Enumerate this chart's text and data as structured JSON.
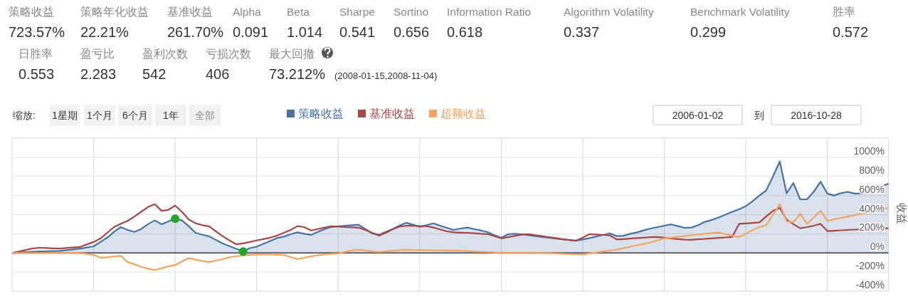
{
  "chart_data": [
    {
      "type": "other",
      "annotations": [
        "策略收益",
        "723.57%",
        "策略年化收益",
        "22.21%",
        "基准收益",
        "261.70%",
        "Alpha",
        "0.091",
        "Beta",
        "1.014",
        "Sharpe",
        "0.541",
        "Sortino",
        "0.656",
        "Information Ratio",
        "0.618",
        "Algorithm Volatility",
        "0.337",
        "Benchmark Volatility",
        "0.299",
        "胜率",
        "0.572",
        "日胜率",
        "0.553",
        "盈亏比",
        "2.283",
        "盈利次数",
        "542",
        "亏损次数",
        "406",
        "最大回撤",
        "73.212%",
        "(2008-01-15,2008-11-04)"
      ]
    },
    {
      "type": "line",
      "ylabel": "收益",
      "annotations": [
        "缩放:",
        "1星期",
        "1个月",
        "6个月",
        "1年",
        "全部",
        "2006-01-02",
        "到",
        "2016-10-28"
      ],
      "categories": [
        null,
        null,
        null,
        null,
        null,
        null,
        null,
        null,
        null,
        null,
        null,
        null,
        null,
        null,
        null,
        null,
        null,
        null,
        null,
        null,
        null,
        null,
        null,
        null,
        null,
        null,
        null,
        null,
        null,
        null,
        null,
        null,
        null,
        null,
        null,
        null,
        null,
        null,
        null,
        null,
        null,
        null,
        null,
        null,
        null,
        null,
        null,
        null,
        null,
        null,
        null,
        null,
        null,
        null,
        null,
        null,
        null,
        null,
        null,
        null,
        null,
        null,
        null,
        null,
        null,
        null,
        null,
        null,
        null,
        null,
        null,
        null,
        null,
        null,
        null,
        null,
        null,
        null,
        null,
        null,
        null,
        null,
        null,
        null,
        null,
        null,
        null,
        null,
        null,
        null,
        null,
        null,
        null,
        null,
        null,
        null,
        null,
        null,
        null,
        null,
        null,
        null,
        null,
        null,
        null,
        null,
        null,
        null,
        null,
        null,
        null,
        null,
        null,
        null,
        null,
        null,
        null,
        null,
        null,
        null,
        null,
        null,
        null,
        null,
        null,
        null,
        null,
        null,
        null,
        null
      ],
      "ylim": [
        -400,
        1200
      ],
      "yticks": [
        {
          "value": -400,
          "label": "-400%"
        },
        {
          "value": -200,
          "label": "-200%"
        },
        {
          "value": 0,
          "label": "0%"
        },
        {
          "value": 200,
          "label": "200%"
        },
        {
          "value": 400,
          "label": "400%"
        },
        {
          "value": 600,
          "label": "600%"
        },
        {
          "value": 800,
          "label": "800%"
        },
        {
          "value": 1000,
          "label": "1000%"
        },
        {
          "value": 1200,
          "label": null
        }
      ],
      "grid": true,
      "legend": "top",
      "ref_lines": [
        {
          "axis": "y",
          "value": 0,
          "color": "#606060"
        }
      ],
      "series": [
        {
          "name": "策略收益",
          "type": "area",
          "color": "#4572a7",
          "values": [
            0,
            4,
            8,
            12,
            15,
            17,
            19,
            21,
            29,
            37,
            45,
            57,
            69,
            115,
            160,
            220,
            270,
            240,
            219,
            250,
            300,
            340,
            300,
            330,
            358,
            340,
            280,
            210,
            190,
            174,
            135,
            99,
            70,
            42,
            15,
            50,
            65,
            95,
            125,
            155,
            170,
            195,
            215,
            200,
            189,
            220,
            250,
            273,
            278,
            283,
            289,
            294,
            250,
            204,
            190,
            220,
            250,
            285,
            315,
            295,
            273,
            290,
            309,
            285,
            262,
            240,
            255,
            265,
            250,
            235,
            218,
            185,
            158,
            195,
            200,
            195,
            185,
            175,
            167,
            160,
            150,
            142,
            135,
            128,
            140,
            155,
            172,
            188,
            205,
            175,
            180,
            200,
            215,
            237,
            255,
            270,
            285,
            298,
            280,
            262,
            265,
            290,
            325,
            345,
            370,
            400,
            430,
            456,
            490,
            540,
            600,
            653,
            800,
            957,
            623,
            730,
            560,
            560,
            640,
            745,
            620,
            600,
            625,
            638,
            620,
            620,
            650,
            684,
            700,
            723
          ]
        },
        {
          "name": "基准收益",
          "type": "line",
          "color": "#aa4643",
          "values": [
            0,
            15,
            30,
            45,
            54,
            51,
            48,
            45,
            51,
            57,
            63,
            88,
            114,
            150,
            210,
            270,
            305,
            335,
            380,
            430,
            480,
            510,
            440,
            450,
            495,
            430,
            350,
            310,
            290,
            279,
            225,
            174,
            130,
            90,
            99,
            114,
            130,
            145,
            160,
            180,
            210,
            240,
            280,
            270,
            234,
            250,
            265,
            279,
            275,
            270,
            267,
            264,
            240,
            210,
            180,
            210,
            245,
            275,
            285,
            283,
            281,
            280,
            265,
            245,
            225,
            215,
            212,
            210,
            205,
            200,
            197,
            175,
            152,
            165,
            178,
            190,
            197,
            185,
            175,
            165,
            155,
            145,
            135,
            128,
            160,
            197,
            192,
            188,
            183,
            140,
            145,
            150,
            155,
            160,
            165,
            167,
            160,
            152,
            145,
            138,
            137,
            142,
            147,
            152,
            157,
            162,
            167,
            304,
            308,
            313,
            319,
            380,
            440,
            471,
            349,
            300,
            258,
            270,
            285,
            304,
            228,
            232,
            236,
            240,
            244,
            247,
            250,
            253,
            256,
            258
          ]
        },
        {
          "name": "超额收益",
          "type": "line",
          "color": "#f7a35c",
          "values": [
            0,
            0,
            0,
            0,
            0,
            0,
            0,
            0,
            0,
            0,
            0,
            -10,
            -21,
            -51,
            -45,
            -38,
            -30,
            -96,
            -120,
            -145,
            -165,
            -180,
            -160,
            -140,
            -126,
            -90,
            -55,
            -70,
            -85,
            -96,
            -80,
            -65,
            -45,
            -35,
            -27,
            -22,
            -18,
            -15,
            -17,
            -19,
            -21,
            -45,
            -65,
            -50,
            -36,
            -25,
            -15,
            -10,
            -6,
            10,
            25,
            33,
            25,
            15,
            9,
            15,
            22,
            28,
            33,
            30,
            30,
            29,
            28,
            27,
            26,
            25,
            24,
            20,
            16,
            12,
            8,
            4,
            0,
            0,
            0,
            0,
            0,
            0,
            0,
            -3,
            -6,
            -9,
            -12,
            -14,
            -15,
            -5,
            5,
            15,
            24,
            35,
            50,
            65,
            80,
            95,
            110,
            130,
            152,
            160,
            168,
            176,
            184,
            192,
            200,
            208,
            212,
            195,
            180,
            167,
            200,
            240,
            270,
            289,
            400,
            510,
            330,
            320,
            410,
            304,
            370,
            441,
            334,
            350,
            365,
            380,
            395,
            410,
            425,
            440,
            455,
            471
          ]
        },
        {
          "type": "scatter",
          "color": "#22a722",
          "marker": "circle",
          "values": [
            null,
            null,
            null,
            null,
            null,
            null,
            null,
            null,
            null,
            null,
            null,
            null,
            null,
            null,
            null,
            null,
            null,
            null,
            null,
            null,
            null,
            null,
            null,
            null,
            358,
            null,
            null,
            null,
            null,
            null,
            null,
            null,
            null,
            null,
            15,
            null,
            null,
            null,
            null,
            null,
            null,
            null,
            null,
            null,
            null,
            null,
            null,
            null,
            null,
            null,
            null,
            null,
            null,
            null,
            null,
            null,
            null,
            null,
            null,
            null,
            null,
            null,
            null,
            null,
            null,
            null,
            null,
            null,
            null,
            null,
            null,
            null,
            null,
            null,
            null,
            null,
            null,
            null,
            null,
            null,
            null,
            null,
            null,
            null,
            null,
            null,
            null,
            null,
            null,
            null,
            null,
            null,
            null,
            null,
            null,
            null,
            null,
            null,
            null,
            null,
            null,
            null,
            null,
            null,
            null,
            null,
            null,
            null,
            null,
            null,
            null,
            null,
            null,
            null,
            null,
            null,
            null,
            null,
            null,
            null,
            null,
            null,
            null,
            null,
            null,
            null,
            null,
            null,
            null,
            null
          ]
        }
      ]
    }
  ]
}
